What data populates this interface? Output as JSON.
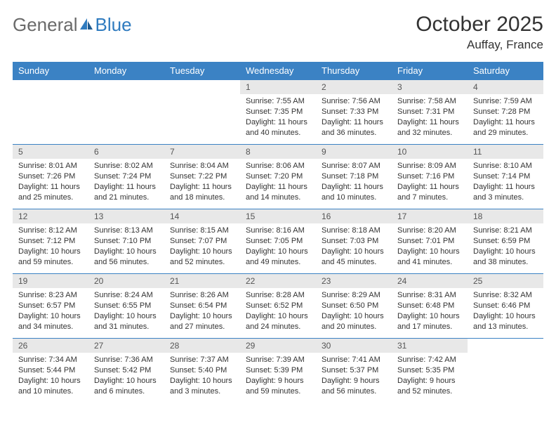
{
  "logo": {
    "text1": "General",
    "text2": "Blue"
  },
  "title": "October 2025",
  "location": "Auffay, France",
  "colors": {
    "header_bg": "#3b82c4",
    "header_text": "#ffffff",
    "daynum_bg": "#e8e8e8",
    "border": "#3b82c4",
    "logo_gray": "#6a6a6a",
    "logo_blue": "#2f7bbf"
  },
  "weekdays": [
    "Sunday",
    "Monday",
    "Tuesday",
    "Wednesday",
    "Thursday",
    "Friday",
    "Saturday"
  ],
  "weeks": [
    [
      {
        "day": "",
        "sunrise": "",
        "sunset": "",
        "daylight": ""
      },
      {
        "day": "",
        "sunrise": "",
        "sunset": "",
        "daylight": ""
      },
      {
        "day": "",
        "sunrise": "",
        "sunset": "",
        "daylight": ""
      },
      {
        "day": "1",
        "sunrise": "Sunrise: 7:55 AM",
        "sunset": "Sunset: 7:35 PM",
        "daylight": "Daylight: 11 hours and 40 minutes."
      },
      {
        "day": "2",
        "sunrise": "Sunrise: 7:56 AM",
        "sunset": "Sunset: 7:33 PM",
        "daylight": "Daylight: 11 hours and 36 minutes."
      },
      {
        "day": "3",
        "sunrise": "Sunrise: 7:58 AM",
        "sunset": "Sunset: 7:31 PM",
        "daylight": "Daylight: 11 hours and 32 minutes."
      },
      {
        "day": "4",
        "sunrise": "Sunrise: 7:59 AM",
        "sunset": "Sunset: 7:28 PM",
        "daylight": "Daylight: 11 hours and 29 minutes."
      }
    ],
    [
      {
        "day": "5",
        "sunrise": "Sunrise: 8:01 AM",
        "sunset": "Sunset: 7:26 PM",
        "daylight": "Daylight: 11 hours and 25 minutes."
      },
      {
        "day": "6",
        "sunrise": "Sunrise: 8:02 AM",
        "sunset": "Sunset: 7:24 PM",
        "daylight": "Daylight: 11 hours and 21 minutes."
      },
      {
        "day": "7",
        "sunrise": "Sunrise: 8:04 AM",
        "sunset": "Sunset: 7:22 PM",
        "daylight": "Daylight: 11 hours and 18 minutes."
      },
      {
        "day": "8",
        "sunrise": "Sunrise: 8:06 AM",
        "sunset": "Sunset: 7:20 PM",
        "daylight": "Daylight: 11 hours and 14 minutes."
      },
      {
        "day": "9",
        "sunrise": "Sunrise: 8:07 AM",
        "sunset": "Sunset: 7:18 PM",
        "daylight": "Daylight: 11 hours and 10 minutes."
      },
      {
        "day": "10",
        "sunrise": "Sunrise: 8:09 AM",
        "sunset": "Sunset: 7:16 PM",
        "daylight": "Daylight: 11 hours and 7 minutes."
      },
      {
        "day": "11",
        "sunrise": "Sunrise: 8:10 AM",
        "sunset": "Sunset: 7:14 PM",
        "daylight": "Daylight: 11 hours and 3 minutes."
      }
    ],
    [
      {
        "day": "12",
        "sunrise": "Sunrise: 8:12 AM",
        "sunset": "Sunset: 7:12 PM",
        "daylight": "Daylight: 10 hours and 59 minutes."
      },
      {
        "day": "13",
        "sunrise": "Sunrise: 8:13 AM",
        "sunset": "Sunset: 7:10 PM",
        "daylight": "Daylight: 10 hours and 56 minutes."
      },
      {
        "day": "14",
        "sunrise": "Sunrise: 8:15 AM",
        "sunset": "Sunset: 7:07 PM",
        "daylight": "Daylight: 10 hours and 52 minutes."
      },
      {
        "day": "15",
        "sunrise": "Sunrise: 8:16 AM",
        "sunset": "Sunset: 7:05 PM",
        "daylight": "Daylight: 10 hours and 49 minutes."
      },
      {
        "day": "16",
        "sunrise": "Sunrise: 8:18 AM",
        "sunset": "Sunset: 7:03 PM",
        "daylight": "Daylight: 10 hours and 45 minutes."
      },
      {
        "day": "17",
        "sunrise": "Sunrise: 8:20 AM",
        "sunset": "Sunset: 7:01 PM",
        "daylight": "Daylight: 10 hours and 41 minutes."
      },
      {
        "day": "18",
        "sunrise": "Sunrise: 8:21 AM",
        "sunset": "Sunset: 6:59 PM",
        "daylight": "Daylight: 10 hours and 38 minutes."
      }
    ],
    [
      {
        "day": "19",
        "sunrise": "Sunrise: 8:23 AM",
        "sunset": "Sunset: 6:57 PM",
        "daylight": "Daylight: 10 hours and 34 minutes."
      },
      {
        "day": "20",
        "sunrise": "Sunrise: 8:24 AM",
        "sunset": "Sunset: 6:55 PM",
        "daylight": "Daylight: 10 hours and 31 minutes."
      },
      {
        "day": "21",
        "sunrise": "Sunrise: 8:26 AM",
        "sunset": "Sunset: 6:54 PM",
        "daylight": "Daylight: 10 hours and 27 minutes."
      },
      {
        "day": "22",
        "sunrise": "Sunrise: 8:28 AM",
        "sunset": "Sunset: 6:52 PM",
        "daylight": "Daylight: 10 hours and 24 minutes."
      },
      {
        "day": "23",
        "sunrise": "Sunrise: 8:29 AM",
        "sunset": "Sunset: 6:50 PM",
        "daylight": "Daylight: 10 hours and 20 minutes."
      },
      {
        "day": "24",
        "sunrise": "Sunrise: 8:31 AM",
        "sunset": "Sunset: 6:48 PM",
        "daylight": "Daylight: 10 hours and 17 minutes."
      },
      {
        "day": "25",
        "sunrise": "Sunrise: 8:32 AM",
        "sunset": "Sunset: 6:46 PM",
        "daylight": "Daylight: 10 hours and 13 minutes."
      }
    ],
    [
      {
        "day": "26",
        "sunrise": "Sunrise: 7:34 AM",
        "sunset": "Sunset: 5:44 PM",
        "daylight": "Daylight: 10 hours and 10 minutes."
      },
      {
        "day": "27",
        "sunrise": "Sunrise: 7:36 AM",
        "sunset": "Sunset: 5:42 PM",
        "daylight": "Daylight: 10 hours and 6 minutes."
      },
      {
        "day": "28",
        "sunrise": "Sunrise: 7:37 AM",
        "sunset": "Sunset: 5:40 PM",
        "daylight": "Daylight: 10 hours and 3 minutes."
      },
      {
        "day": "29",
        "sunrise": "Sunrise: 7:39 AM",
        "sunset": "Sunset: 5:39 PM",
        "daylight": "Daylight: 9 hours and 59 minutes."
      },
      {
        "day": "30",
        "sunrise": "Sunrise: 7:41 AM",
        "sunset": "Sunset: 5:37 PM",
        "daylight": "Daylight: 9 hours and 56 minutes."
      },
      {
        "day": "31",
        "sunrise": "Sunrise: 7:42 AM",
        "sunset": "Sunset: 5:35 PM",
        "daylight": "Daylight: 9 hours and 52 minutes."
      },
      {
        "day": "",
        "sunrise": "",
        "sunset": "",
        "daylight": ""
      }
    ]
  ]
}
